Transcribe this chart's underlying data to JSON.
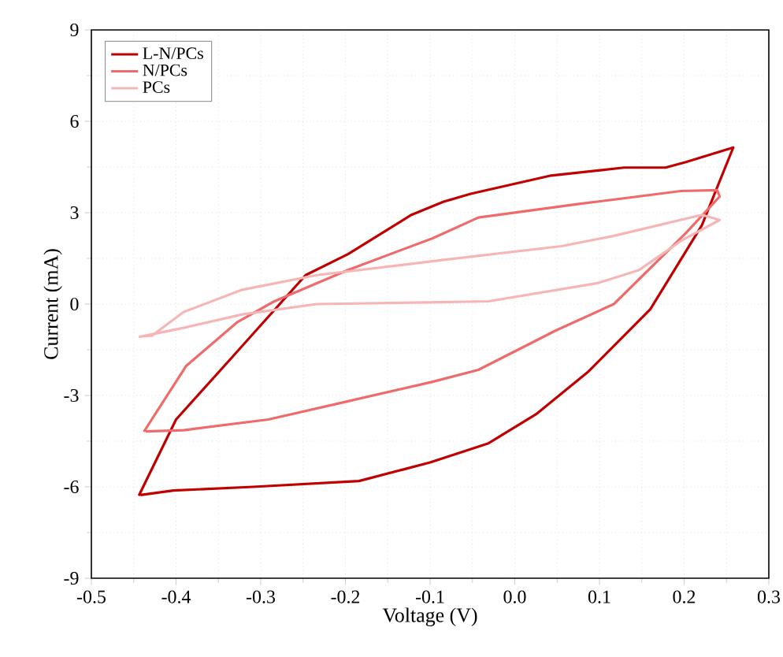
{
  "chart_data": {
    "type": "line",
    "xlabel": "Voltage (V)",
    "ylabel": "Current (mA)",
    "xlim": [
      -0.5,
      0.3
    ],
    "ylim": [
      -9,
      9
    ],
    "xticks": [
      -0.5,
      -0.4,
      -0.3,
      -0.2,
      -0.1,
      {
        "value": 0,
        "label": "0.0"
      },
      0.1,
      0.2,
      0.3
    ],
    "yticks": [
      -9,
      -6,
      -3,
      0,
      3,
      6,
      9
    ],
    "grid": true,
    "legend": "top left",
    "marker": "none",
    "line_style": "solid",
    "series": [
      {
        "name": "L-N/PCs",
        "color": "#c00000",
        "x": [
          -0.444,
          -0.4,
          -0.333,
          -0.247,
          -0.197,
          -0.122,
          -0.084,
          -0.052,
          0.043,
          0.129,
          0.178,
          0.202,
          0.258,
          0.221,
          0.16,
          0.086,
          0.025,
          -0.031,
          -0.1,
          -0.184,
          -0.309,
          -0.403,
          -0.442
        ],
        "values": [
          -6.29,
          -3.79,
          -1.72,
          0.95,
          1.64,
          2.93,
          3.36,
          3.62,
          4.22,
          4.48,
          4.48,
          4.66,
          5.14,
          2.59,
          -0.17,
          -2.24,
          -3.62,
          -4.57,
          -5.2,
          -5.81,
          -6.0,
          -6.12,
          -6.27
        ]
      },
      {
        "name": "N/PCs",
        "color": "#ef6b6b",
        "x": [
          -0.438,
          -0.388,
          -0.328,
          -0.284,
          -0.197,
          -0.097,
          -0.043,
          0.074,
          0.196,
          0.239,
          0.242,
          0.202,
          0.117,
          0.049,
          -0.043,
          -0.097,
          -0.197,
          -0.291,
          -0.391,
          -0.436
        ],
        "values": [
          -4.19,
          -2.03,
          -0.6,
          0.09,
          1.12,
          2.16,
          2.84,
          3.28,
          3.71,
          3.74,
          3.53,
          2.33,
          0.0,
          -0.86,
          -2.16,
          -2.55,
          -3.19,
          -3.79,
          -4.14,
          -4.18
        ]
      },
      {
        "name": "PCs",
        "color": "#f7b6b6",
        "x": [
          -0.444,
          -0.428,
          -0.391,
          -0.322,
          -0.234,
          -0.09,
          0.055,
          0.117,
          0.221,
          0.242,
          0.196,
          0.147,
          0.098,
          -0.031,
          -0.09,
          -0.234,
          -0.322,
          -0.391,
          -0.442
        ],
        "values": [
          -1.07,
          -1.03,
          -0.26,
          0.47,
          0.95,
          1.43,
          1.9,
          2.24,
          2.93,
          2.76,
          2.07,
          1.12,
          0.69,
          0.09,
          0.06,
          0.0,
          -0.34,
          -0.78,
          -1.07
        ]
      }
    ]
  }
}
